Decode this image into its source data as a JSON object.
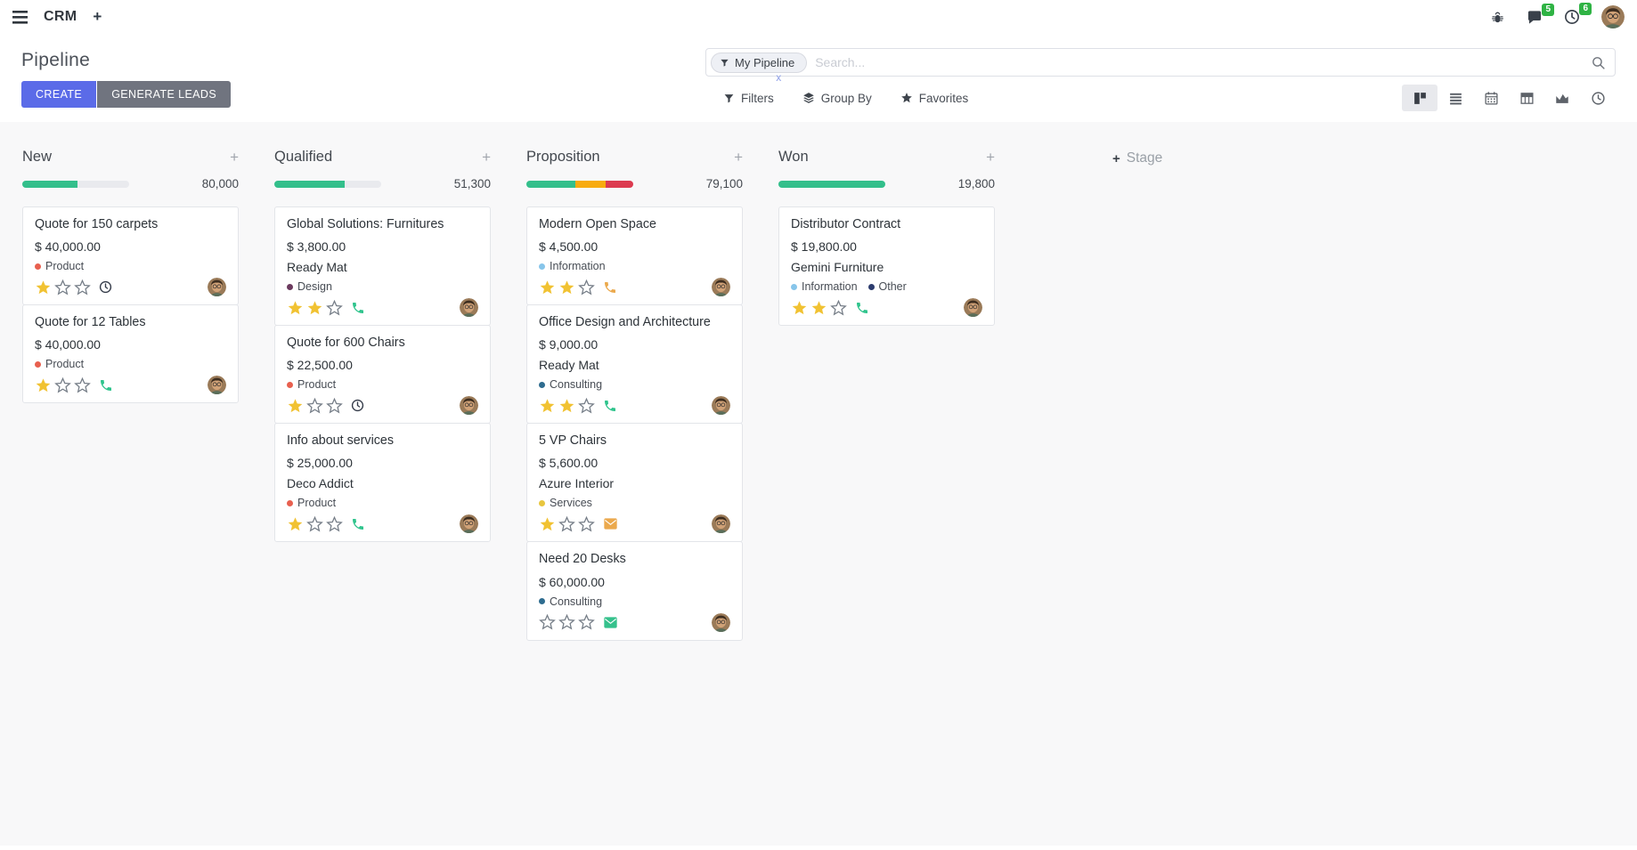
{
  "navbar": {
    "app_name": "CRM",
    "messages_badge": "5",
    "activities_badge": "6"
  },
  "control_panel": {
    "title": "Pipeline",
    "create_label": "CREATE",
    "generate_label": "GENERATE LEADS",
    "search_facet": "My Pipeline",
    "search_placeholder": "Search...",
    "filters_label": "Filters",
    "group_by_label": "Group By",
    "favorites_label": "Favorites"
  },
  "colors": {
    "create_button": "#5b6be8",
    "generate_button": "#70747f",
    "progress_green": "#33bf8b",
    "progress_orange": "#f8ab0e",
    "progress_red": "#dc3a4f",
    "progress_track": "#e9eaee",
    "star_gold": "#f1c232",
    "badge_green": "#2fb344"
  },
  "kanban": {
    "add_stage_label": "Stage",
    "columns": [
      {
        "name": "New",
        "amount": "80,000",
        "progress": [
          {
            "color": "#33bf8b",
            "pct": 52
          },
          {
            "color": "#e9eaee",
            "pct": 48
          }
        ],
        "cards": [
          {
            "title": "Quote for 150 carpets",
            "amount": "$ 40,000.00",
            "tags": [
              {
                "label": "Product",
                "color": "#e8604f"
              }
            ],
            "stars": 1,
            "activity_icon": "clock",
            "activity_color": "#343b49"
          },
          {
            "title": "Quote for 12 Tables",
            "amount": "$ 40,000.00",
            "tags": [
              {
                "label": "Product",
                "color": "#e8604f"
              }
            ],
            "stars": 1,
            "activity_icon": "phone",
            "activity_color": "#30c48d"
          }
        ]
      },
      {
        "name": "Qualified",
        "amount": "51,300",
        "progress": [
          {
            "color": "#33bf8b",
            "pct": 66
          },
          {
            "color": "#e9eaee",
            "pct": 34
          }
        ],
        "cards": [
          {
            "title": "Global Solutions: Furnitures",
            "amount": "$ 3,800.00",
            "company": "Ready Mat",
            "tags": [
              {
                "label": "Design",
                "color": "#6b3a5e"
              }
            ],
            "stars": 2,
            "activity_icon": "phone",
            "activity_color": "#30c48d"
          },
          {
            "title": "Quote for 600 Chairs",
            "amount": "$ 22,500.00",
            "tags": [
              {
                "label": "Product",
                "color": "#e8604f"
              }
            ],
            "stars": 1,
            "activity_icon": "clock",
            "activity_color": "#343b49"
          },
          {
            "title": "Info about services",
            "amount": "$ 25,000.00",
            "company": "Deco Addict",
            "tags": [
              {
                "label": "Product",
                "color": "#e8604f"
              }
            ],
            "stars": 1,
            "activity_icon": "phone",
            "activity_color": "#30c48d"
          }
        ]
      },
      {
        "name": "Proposition",
        "amount": "79,100",
        "progress": [
          {
            "color": "#33bf8b",
            "pct": 46
          },
          {
            "color": "#f8ab0e",
            "pct": 28
          },
          {
            "color": "#dc3a4f",
            "pct": 26
          }
        ],
        "cards": [
          {
            "title": "Modern Open Space",
            "amount": "$ 4,500.00",
            "tags": [
              {
                "label": "Information",
                "color": "#87c5ea"
              }
            ],
            "stars": 2,
            "activity_icon": "phone",
            "activity_color": "#eba94d"
          },
          {
            "title": "Office Design and Architecture",
            "amount": "$ 9,000.00",
            "company": "Ready Mat",
            "tags": [
              {
                "label": "Consulting",
                "color": "#2e6c8f"
              }
            ],
            "stars": 2,
            "activity_icon": "phone",
            "activity_color": "#30c48d"
          },
          {
            "title": "5 VP Chairs",
            "amount": "$ 5,600.00",
            "company": "Azure Interior",
            "tags": [
              {
                "label": "Services",
                "color": "#e8c63e"
              }
            ],
            "stars": 1,
            "activity_icon": "envelope",
            "activity_color": "#eba94d"
          },
          {
            "title": "Need 20 Desks",
            "amount": "$ 60,000.00",
            "tags": [
              {
                "label": "Consulting",
                "color": "#2e6c8f"
              }
            ],
            "stars": 0,
            "activity_icon": "envelope",
            "activity_color": "#35c18c"
          }
        ]
      },
      {
        "name": "Won",
        "amount": "19,800",
        "progress": [
          {
            "color": "#33bf8b",
            "pct": 100
          }
        ],
        "cards": [
          {
            "title": "Distributor Contract",
            "amount": "$ 19,800.00",
            "company": "Gemini Furniture",
            "tags": [
              {
                "label": "Information",
                "color": "#87c5ea"
              },
              {
                "label": "Other",
                "color": "#2c3c6e"
              }
            ],
            "stars": 2,
            "activity_icon": "phone",
            "activity_color": "#30c48d"
          }
        ]
      }
    ]
  }
}
